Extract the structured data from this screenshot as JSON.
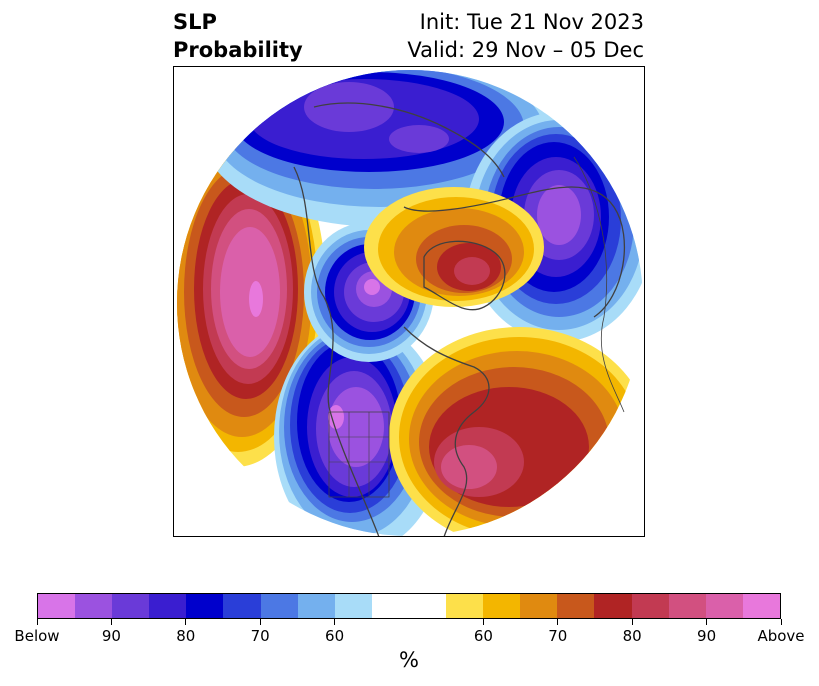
{
  "title": {
    "left_line1": "SLP",
    "left_line2": "Probability",
    "right_line1": "Init: Tue 21 Nov 2023",
    "right_line2": "Valid: 29 Nov – 05 Dec"
  },
  "colorbar": {
    "unit": "%",
    "colors": [
      "#d874e8",
      "#9b52e0",
      "#6a3ad8",
      "#3a1ed0",
      "#0000cc",
      "#2a3ed8",
      "#4c78e4",
      "#74b0ee",
      "#a8dcf8",
      "#ffffff",
      "#ffffff",
      "#fde04a",
      "#f3b600",
      "#e08a10",
      "#c8581c",
      "#b02424",
      "#c23a52",
      "#d25080",
      "#da60aa",
      "#e878dc"
    ],
    "ticks": [
      {
        "label": "Below",
        "index": 0
      },
      {
        "label": "90",
        "index": 2
      },
      {
        "label": "80",
        "index": 4
      },
      {
        "label": "70",
        "index": 6
      },
      {
        "label": "60",
        "index": 8
      },
      {
        "label": "60",
        "index": 12
      },
      {
        "label": "70",
        "index": 14
      },
      {
        "label": "80",
        "index": 16
      },
      {
        "label": "90",
        "index": 18
      },
      {
        "label": "Above",
        "index": 20
      }
    ]
  }
}
